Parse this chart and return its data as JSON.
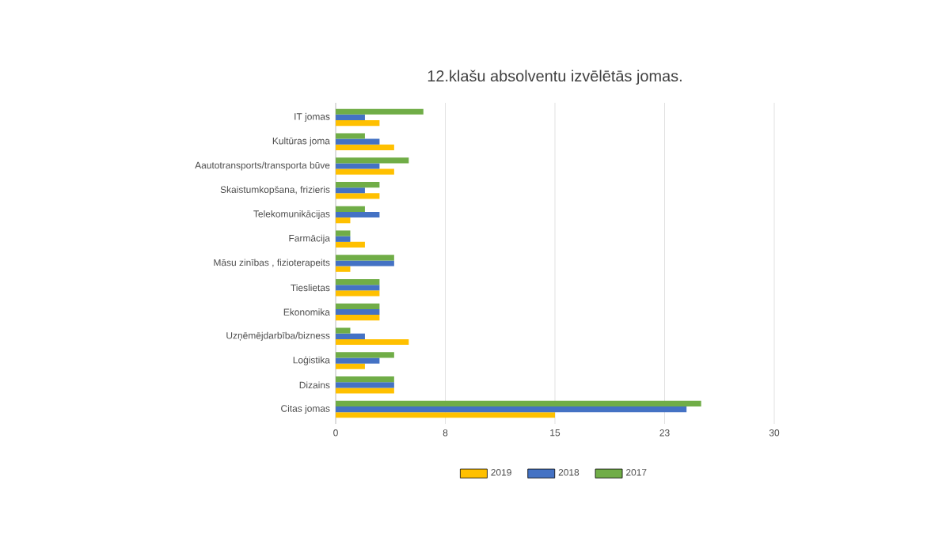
{
  "chart_data": {
    "type": "bar",
    "orientation": "horizontal",
    "title": "12.klašu absolventu izvēlētās jomas.",
    "categories": [
      "IT jomas",
      "Kultūras joma",
      "Aautotransports/transporta būve",
      "Skaistumkopšana, frizieris",
      "Telekomunikācijas",
      "Farmācija",
      "Māsu zinības , fizioterapeits",
      "Tieslietas",
      "Ekonomika",
      "Uzņēmējdarbība/bizness",
      "Loģistika",
      "Dizains",
      "Citas jomas"
    ],
    "series": [
      {
        "name": "2019",
        "color": "#ffc000",
        "values": [
          3,
          4,
          4,
          3,
          1,
          2,
          1,
          3,
          3,
          5,
          2,
          4,
          15
        ]
      },
      {
        "name": "2018",
        "color": "#4472c4",
        "values": [
          2,
          3,
          3,
          2,
          3,
          1,
          4,
          3,
          3,
          2,
          3,
          4,
          24
        ]
      },
      {
        "name": "2017",
        "color": "#70ad47",
        "values": [
          6,
          2,
          5,
          3,
          2,
          1,
          4,
          3,
          3,
          1,
          4,
          4,
          25
        ]
      }
    ],
    "xlim": [
      0,
      30
    ],
    "xticks": [
      0,
      {
        "value": 7.5,
        "label": "8"
      },
      15,
      {
        "value": 22.5,
        "label": "23"
      },
      30
    ],
    "grid": "x",
    "legend": "bottom"
  }
}
